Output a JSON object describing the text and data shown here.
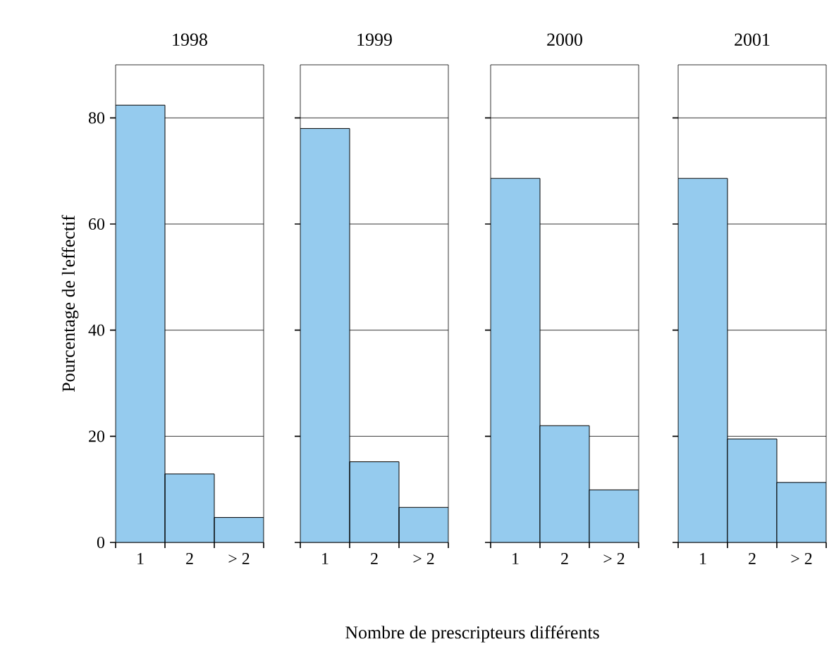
{
  "chart_data": [
    {
      "type": "bar",
      "title": "1998",
      "ylabel": "Pourcentage de l'effectif",
      "categories": [
        "1",
        "2",
        "> 2"
      ],
      "values": [
        82.4,
        12.9,
        4.7
      ],
      "color": "#95cbee",
      "ylim": [
        0,
        90
      ],
      "yticks": [
        0,
        20,
        40,
        60,
        80
      ],
      "grid": "y"
    },
    {
      "type": "bar",
      "title": "1999",
      "xlabel": "Nombre de prescripteurs différents",
      "categories": [
        "1",
        "2",
        "> 2"
      ],
      "values": [
        78.0,
        15.2,
        6.6
      ],
      "color": "#95cbee",
      "ylim": [
        0,
        90
      ],
      "yticks": [
        0,
        20,
        40,
        60,
        80
      ],
      "grid": "y",
      "tick_labels": "x"
    },
    {
      "type": "bar",
      "title": "2000",
      "categories": [
        "1",
        "2",
        "> 2"
      ],
      "values": [
        68.6,
        22.0,
        9.9
      ],
      "color": "#95cbee",
      "ylim": [
        0,
        90
      ],
      "yticks": [
        0,
        20,
        40,
        60,
        80
      ],
      "grid": "y",
      "tick_labels": "x"
    },
    {
      "type": "bar",
      "title": "2001",
      "categories": [
        "1",
        "2",
        "> 2"
      ],
      "values": [
        68.6,
        19.5,
        11.3
      ],
      "color": "#95cbee",
      "ylim": [
        0,
        90
      ],
      "yticks": [
        0,
        20,
        40,
        60,
        80
      ],
      "grid": "y",
      "tick_labels": "x"
    }
  ]
}
